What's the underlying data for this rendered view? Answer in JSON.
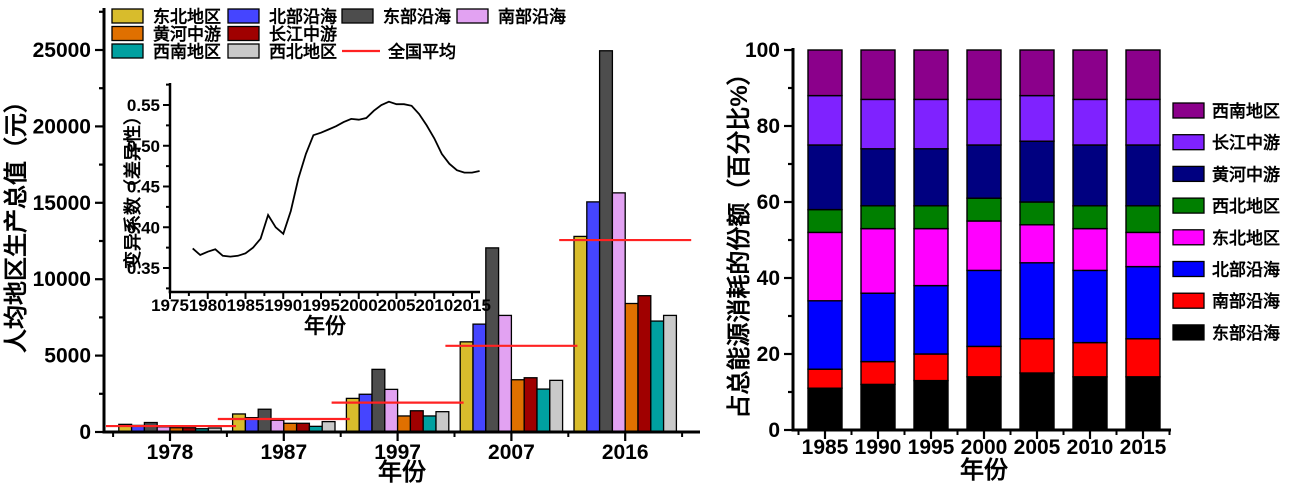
{
  "figure_background": "#ffffff",
  "chart_data": [
    {
      "id": "gdp-grouped-bar",
      "type": "bar",
      "title": "",
      "xlabel": "年份",
      "ylabel": "人均地区生产总值（元）",
      "categories": [
        "1978",
        "1987",
        "1997",
        "2007",
        "2016"
      ],
      "ylim": [
        0,
        27500
      ],
      "yticks": [
        0,
        5000,
        10000,
        15000,
        20000,
        25000
      ],
      "grid": false,
      "legend_position": "top-left",
      "series": [
        {
          "name": "东北地区",
          "color": "#D8BC2C",
          "values": [
            500,
            1180,
            2200,
            5900,
            12800
          ]
        },
        {
          "name": "北部沿海",
          "color": "#4545FF",
          "values": [
            430,
            940,
            2470,
            7060,
            15060
          ]
        },
        {
          "name": "东部沿海",
          "color": "#4D4D4D",
          "values": [
            620,
            1490,
            4100,
            12050,
            24950
          ]
        },
        {
          "name": "南部沿海",
          "color": "#E2A2F2",
          "values": [
            340,
            770,
            2790,
            7630,
            15650
          ]
        },
        {
          "name": "黄河中游",
          "color": "#E07000",
          "values": [
            280,
            570,
            1050,
            3420,
            8410
          ]
        },
        {
          "name": "长江中游",
          "color": "#A00000",
          "values": [
            280,
            570,
            1390,
            3550,
            8920
          ]
        },
        {
          "name": "西南地区",
          "color": "#00A0A0",
          "values": [
            215,
            370,
            1050,
            2810,
            7260
          ]
        },
        {
          "name": "西北地区",
          "color": "#C9C9C9",
          "values": [
            260,
            680,
            1330,
            3380,
            7630
          ]
        }
      ],
      "average_line": {
        "name": "全国平均",
        "color": "#FF2222",
        "values": [
          390,
          850,
          1920,
          5640,
          12560
        ]
      },
      "legend": [
        {
          "name": "东北地区",
          "row": 0,
          "col": 0
        },
        {
          "name": "北部沿海",
          "row": 0,
          "col": 1
        },
        {
          "name": "东部沿海",
          "row": 0,
          "col": 2
        },
        {
          "name": "南部沿海",
          "row": 0,
          "col": 3
        },
        {
          "name": "黄河中游",
          "row": 1,
          "col": 0
        },
        {
          "name": "长江中游",
          "row": 1,
          "col": 1
        },
        {
          "name": "西南地区",
          "row": 2,
          "col": 0
        },
        {
          "name": "西北地区",
          "row": 2,
          "col": 1
        },
        {
          "name": "全国平均",
          "row": 2,
          "col": 2,
          "type": "line"
        }
      ]
    },
    {
      "id": "cv-inset-line",
      "type": "line",
      "title": "",
      "xlabel": "年份",
      "ylabel": "变异系数（差异性）",
      "xlim": [
        1975,
        2017
      ],
      "ylim": [
        0.32,
        0.575
      ],
      "xticks": [
        1975,
        1980,
        1985,
        1990,
        1995,
        2000,
        2005,
        2010,
        2015
      ],
      "yticks": [
        0.35,
        0.4,
        0.45,
        0.5,
        0.55
      ],
      "grid": false,
      "line_color": "#000000",
      "x": [
        1978,
        1979,
        1980,
        1981,
        1982,
        1983,
        1984,
        1985,
        1986,
        1987,
        1988,
        1989,
        1990,
        1991,
        1992,
        1993,
        1994,
        1995,
        1996,
        1997,
        1998,
        1999,
        2000,
        2001,
        2002,
        2003,
        2004,
        2005,
        2006,
        2007,
        2008,
        2009,
        2010,
        2011,
        2012,
        2013,
        2014,
        2015,
        2016
      ],
      "y": [
        0.374,
        0.366,
        0.37,
        0.373,
        0.365,
        0.364,
        0.365,
        0.368,
        0.375,
        0.386,
        0.415,
        0.4,
        0.392,
        0.42,
        0.46,
        0.49,
        0.513,
        0.516,
        0.52,
        0.524,
        0.529,
        0.533,
        0.532,
        0.534,
        0.543,
        0.55,
        0.554,
        0.551,
        0.551,
        0.549,
        0.539,
        0.525,
        0.509,
        0.49,
        0.478,
        0.47,
        0.467,
        0.467,
        0.469
      ]
    },
    {
      "id": "energy-share-stacked",
      "type": "bar",
      "stacked": true,
      "title": "",
      "xlabel": "年份",
      "ylabel": "占总能源消耗的份额（百分比%）",
      "categories": [
        "1985",
        "1990",
        "1995",
        "2000",
        "2005",
        "2010",
        "2015"
      ],
      "ylim": [
        0,
        100
      ],
      "yticks": [
        0,
        20,
        40,
        60,
        80,
        100
      ],
      "grid": false,
      "legend_position": "right",
      "series": [
        {
          "name": "东部沿海",
          "color": "#000000",
          "values": [
            11,
            12,
            13,
            14,
            15,
            14,
            14
          ]
        },
        {
          "name": "南部沿海",
          "color": "#FF0000",
          "values": [
            5,
            6,
            7,
            8,
            9,
            9,
            10
          ]
        },
        {
          "name": "北部沿海",
          "color": "#0000FF",
          "values": [
            18,
            18,
            18,
            20,
            20,
            19,
            19
          ]
        },
        {
          "name": "东北地区",
          "color": "#FF00FF",
          "values": [
            18,
            17,
            15,
            13,
            10,
            11,
            9
          ]
        },
        {
          "name": "西北地区",
          "color": "#007F00",
          "values": [
            6,
            6,
            6,
            6,
            6,
            6,
            7
          ]
        },
        {
          "name": "黄河中游",
          "color": "#000080",
          "values": [
            17,
            15,
            15,
            14,
            16,
            16,
            16
          ]
        },
        {
          "name": "长江中游",
          "color": "#7F22FF",
          "values": [
            13,
            13,
            13,
            12,
            12,
            12,
            12
          ]
        },
        {
          "name": "西南地区",
          "color": "#8B008B",
          "values": [
            12,
            13,
            13,
            13,
            12,
            13,
            13
          ]
        }
      ],
      "legend_order": [
        "西南地区",
        "长江中游",
        "黄河中游",
        "西北地区",
        "东北地区",
        "北部沿海",
        "南部沿海",
        "东部沿海"
      ]
    }
  ]
}
